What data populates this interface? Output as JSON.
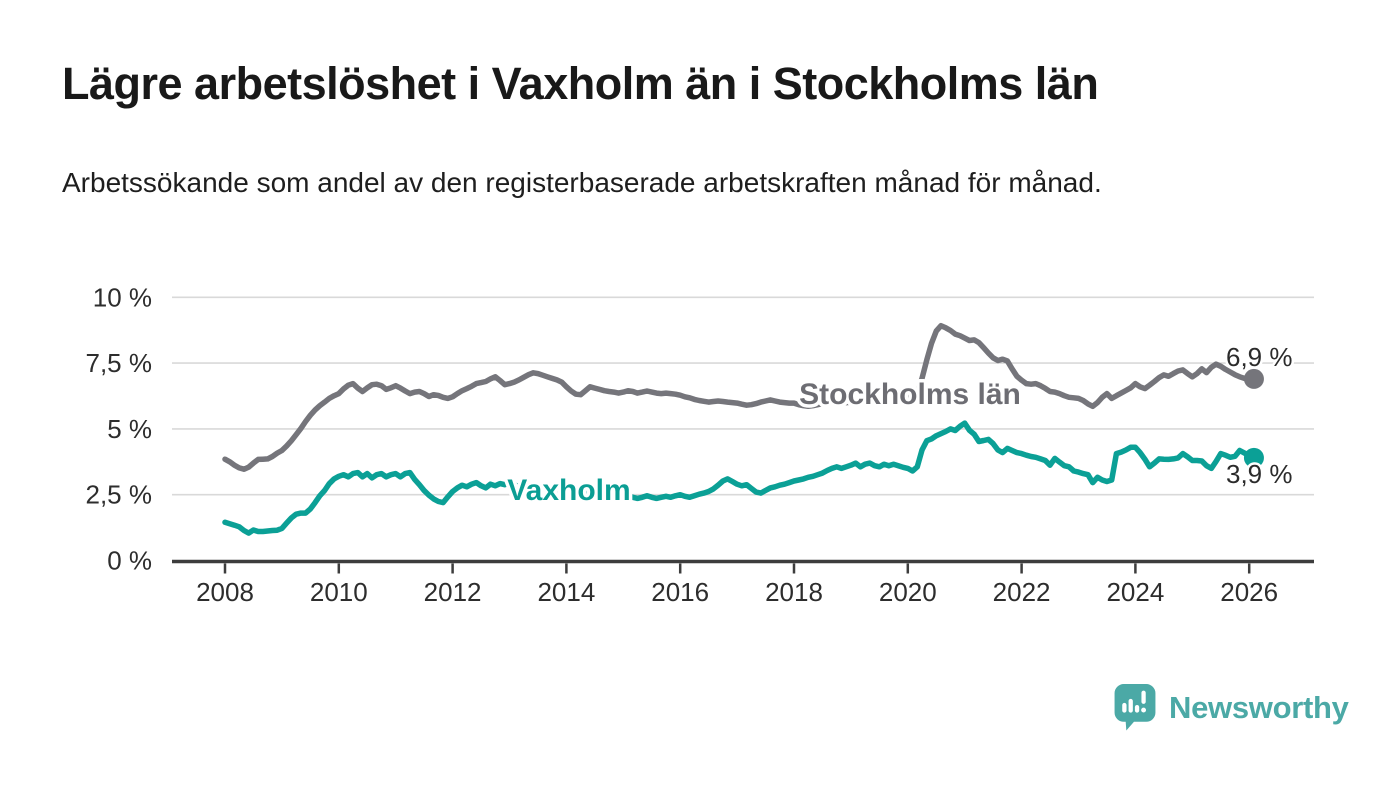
{
  "chart_data": {
    "type": "line",
    "title": "Lägre arbetslöshet i Vaxholm än i Stockholms län",
    "subtitle": "Arbetssökande som andel av den registerbaserade arbetskraften månad för månad.",
    "frequency": "monthly",
    "x_start": "2008-01",
    "x_end": "2026-02",
    "grid": true,
    "ylim": [
      0,
      10
    ],
    "yticks": [
      {
        "value": 0,
        "label": "0 %"
      },
      {
        "value": 2.5,
        "label": "2,5 %"
      },
      {
        "value": 5,
        "label": "5 %"
      },
      {
        "value": 7.5,
        "label": "7,5 %"
      },
      {
        "value": 10,
        "label": "10 %"
      }
    ],
    "xticks": [
      {
        "year": 2008,
        "label": "2008"
      },
      {
        "year": 2010,
        "label": "2010"
      },
      {
        "year": 2012,
        "label": "2012"
      },
      {
        "year": 2014,
        "label": "2014"
      },
      {
        "year": 2016,
        "label": "2016"
      },
      {
        "year": 2018,
        "label": "2018"
      },
      {
        "year": 2020,
        "label": "2020"
      },
      {
        "year": 2022,
        "label": "2022"
      },
      {
        "year": 2024,
        "label": "2024"
      },
      {
        "year": 2026,
        "label": "2026"
      }
    ],
    "series": [
      {
        "name": "Stockholms län",
        "color": "#75757b",
        "label_color": "#6d6d73",
        "end_label": "6,9 %",
        "end_value": 6.9,
        "values": [
          3.85,
          3.75,
          3.62,
          3.52,
          3.47,
          3.55,
          3.7,
          3.84,
          3.85,
          3.86,
          3.95,
          4.08,
          4.18,
          4.35,
          4.55,
          4.78,
          5.02,
          5.28,
          5.52,
          5.72,
          5.88,
          6.02,
          6.16,
          6.26,
          6.34,
          6.52,
          6.66,
          6.72,
          6.55,
          6.42,
          6.56,
          6.68,
          6.7,
          6.64,
          6.5,
          6.56,
          6.64,
          6.55,
          6.44,
          6.34,
          6.4,
          6.42,
          6.34,
          6.23,
          6.3,
          6.27,
          6.2,
          6.16,
          6.22,
          6.34,
          6.45,
          6.53,
          6.62,
          6.72,
          6.76,
          6.8,
          6.9,
          6.98,
          6.84,
          6.68,
          6.72,
          6.78,
          6.86,
          6.96,
          7.06,
          7.13,
          7.1,
          7.04,
          6.98,
          6.92,
          6.86,
          6.78,
          6.6,
          6.44,
          6.32,
          6.3,
          6.45,
          6.6,
          6.55,
          6.5,
          6.45,
          6.42,
          6.4,
          6.36,
          6.4,
          6.45,
          6.42,
          6.36,
          6.4,
          6.44,
          6.4,
          6.36,
          6.34,
          6.36,
          6.34,
          6.32,
          6.28,
          6.22,
          6.18,
          6.12,
          6.08,
          6.05,
          6.02,
          6.04,
          6.06,
          6.04,
          6.02,
          6.0,
          5.98,
          5.94,
          5.9,
          5.92,
          5.96,
          6.02,
          6.06,
          6.1,
          6.06,
          6.02,
          6.0,
          5.98,
          5.98,
          5.92,
          5.88,
          5.86,
          5.88,
          5.92,
          5.96,
          6.0,
          6.02,
          6.0,
          6.0,
          6.0,
          6.02,
          6.04,
          6.06,
          6.08,
          6.1,
          6.12,
          6.14,
          6.14,
          6.1,
          6.12,
          6.16,
          6.2,
          6.2,
          6.22,
          6.42,
          6.92,
          7.62,
          8.25,
          8.72,
          8.92,
          8.84,
          8.74,
          8.6,
          8.54,
          8.45,
          8.36,
          8.38,
          8.28,
          8.08,
          7.88,
          7.7,
          7.6,
          7.65,
          7.58,
          7.28,
          7.0,
          6.85,
          6.72,
          6.7,
          6.72,
          6.64,
          6.54,
          6.42,
          6.4,
          6.34,
          6.26,
          6.2,
          6.18,
          6.16,
          6.08,
          5.95,
          5.86,
          6.0,
          6.2,
          6.34,
          6.16,
          6.26,
          6.36,
          6.46,
          6.56,
          6.72,
          6.6,
          6.53,
          6.66,
          6.8,
          6.95,
          7.05,
          7.0,
          7.1,
          7.2,
          7.24,
          7.1,
          6.98,
          7.1,
          7.28,
          7.14,
          7.34,
          7.46,
          7.38,
          7.26,
          7.16,
          7.06,
          6.98,
          6.92,
          6.9,
          6.9
        ]
      },
      {
        "name": "Vaxholm",
        "color": "#0BA096",
        "label_color": "#0b9e94",
        "end_label": "3,9 %",
        "end_value": 3.9,
        "values": [
          1.45,
          1.4,
          1.34,
          1.28,
          1.14,
          1.04,
          1.16,
          1.1,
          1.1,
          1.12,
          1.14,
          1.15,
          1.22,
          1.42,
          1.62,
          1.76,
          1.8,
          1.8,
          1.96,
          2.2,
          2.46,
          2.66,
          2.92,
          3.1,
          3.2,
          3.26,
          3.18,
          3.3,
          3.34,
          3.18,
          3.3,
          3.14,
          3.26,
          3.3,
          3.18,
          3.26,
          3.3,
          3.18,
          3.3,
          3.34,
          3.08,
          2.88,
          2.66,
          2.48,
          2.34,
          2.24,
          2.2,
          2.42,
          2.62,
          2.76,
          2.86,
          2.8,
          2.9,
          2.96,
          2.84,
          2.76,
          2.9,
          2.84,
          2.92,
          2.88,
          2.95,
          2.88,
          2.8,
          2.86,
          2.9,
          2.84,
          2.8,
          2.76,
          2.7,
          2.7,
          2.66,
          2.6,
          2.6,
          2.56,
          2.62,
          2.66,
          2.6,
          2.54,
          2.5,
          2.46,
          2.44,
          2.5,
          2.46,
          2.4,
          2.42,
          2.46,
          2.4,
          2.36,
          2.4,
          2.46,
          2.4,
          2.36,
          2.4,
          2.44,
          2.4,
          2.46,
          2.5,
          2.44,
          2.4,
          2.46,
          2.52,
          2.56,
          2.62,
          2.72,
          2.86,
          3.02,
          3.1,
          3.0,
          2.9,
          2.84,
          2.88,
          2.74,
          2.6,
          2.56,
          2.66,
          2.76,
          2.8,
          2.86,
          2.9,
          2.96,
          3.02,
          3.06,
          3.1,
          3.16,
          3.2,
          3.26,
          3.32,
          3.42,
          3.5,
          3.56,
          3.5,
          3.56,
          3.62,
          3.7,
          3.56,
          3.66,
          3.7,
          3.6,
          3.56,
          3.66,
          3.6,
          3.66,
          3.6,
          3.54,
          3.5,
          3.4,
          3.56,
          4.2,
          4.55,
          4.62,
          4.74,
          4.82,
          4.9,
          5.0,
          4.94,
          5.1,
          5.22,
          4.95,
          4.8,
          4.52,
          4.56,
          4.6,
          4.44,
          4.2,
          4.1,
          4.26,
          4.18,
          4.1,
          4.06,
          4.0,
          3.95,
          3.92,
          3.86,
          3.8,
          3.62,
          3.88,
          3.74,
          3.6,
          3.56,
          3.4,
          3.36,
          3.3,
          3.26,
          2.96,
          3.16,
          3.06,
          3.0,
          3.06,
          4.06,
          4.12,
          4.2,
          4.3,
          4.3,
          4.1,
          3.85,
          3.56,
          3.7,
          3.86,
          3.85,
          3.84,
          3.86,
          3.9,
          4.06,
          3.94,
          3.8,
          3.8,
          3.78,
          3.6,
          3.5,
          3.76,
          4.06,
          4.0,
          3.92,
          3.96,
          4.18,
          4.08,
          3.98,
          3.9
        ]
      }
    ]
  },
  "footer": {
    "brand": "Newsworthy",
    "brand_color": "#4BA9A6"
  }
}
